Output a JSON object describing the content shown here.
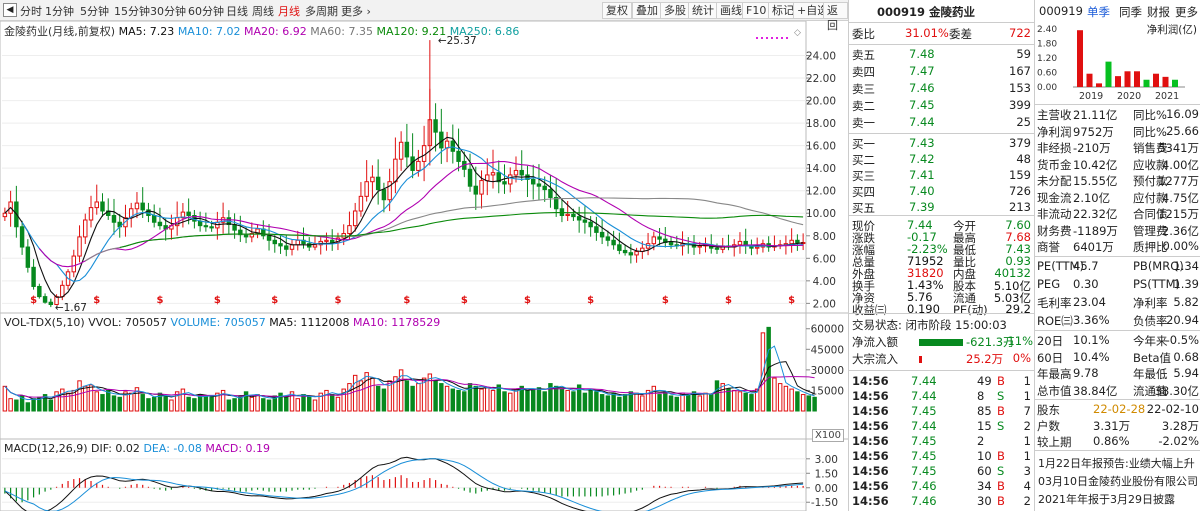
{
  "toolbar": {
    "periods": [
      "分时",
      "1分钟",
      "5分钟",
      "15分钟",
      "30分钟",
      "60分钟",
      "日线",
      "周线",
      "月线",
      "多周期",
      "更多"
    ],
    "active_period": "月线",
    "buttons": [
      "复权",
      "叠加",
      "多股",
      "统计",
      "画线",
      "F10",
      "标记",
      "+自选",
      "返回"
    ]
  },
  "main_legend": {
    "stock": "金陵药业(月线,前复权)",
    "ma5": "MA5: 7.23",
    "ma10": "MA10: 7.02",
    "ma20": "MA20: 6.92",
    "ma60": "MA60: 7.35",
    "ma120": "MA120: 9.21",
    "ma250": "MA250: 6.86"
  },
  "colors": {
    "up": "#e01010",
    "down": "#07891f",
    "ma5": "#111111",
    "ma10": "#1a8fd8",
    "ma20": "#b000b0",
    "ma60": "#888888",
    "ma120": "#0a8a0a",
    "ma250": "#11a0a0"
  },
  "price_axis": [
    "24.00",
    "22.00",
    "20.00",
    "18.00",
    "16.00",
    "14.00",
    "12.00",
    "10.00",
    "8.00",
    "6.00",
    "4.00",
    "2.00"
  ],
  "price_annotations": {
    "high": "25.37",
    "low": "1.67"
  },
  "volume_legend": {
    "title": "VOL-TDX(5,10)",
    "vvol": "VVOL: 705057",
    "volume": "VOLUME: 705057",
    "ma5": "MA5: 1112008",
    "ma10": "MA10: 1178529"
  },
  "volume_axis": [
    "60000",
    "45000",
    "30000",
    "15000"
  ],
  "volume_unit": "X100",
  "macd_legend": {
    "title": "MACD(12,26,9)",
    "dif": "DIF: 0.02",
    "dea": "DEA: -0.08",
    "macd": "MACD: 0.19"
  },
  "macd_axis": [
    "3.00",
    "1.50",
    "0.00",
    "-1.50"
  ],
  "chart_data": {
    "type": "candlestick",
    "period": "month",
    "price_ylim": [
      1.5,
      26
    ],
    "price_high": 25.37,
    "price_low": 1.67,
    "ma_last": {
      "MA5": 7.23,
      "MA10": 7.02,
      "MA20": 6.92,
      "MA60": 7.35,
      "MA120": 9.21,
      "MA250": 6.86
    },
    "volume_ylim": [
      0,
      62000
    ],
    "volume_last": 705057,
    "macd_ylim": [
      -2.2,
      3.6
    ],
    "macd_last": {
      "DIF": 0.02,
      "DEA": -0.08,
      "MACD": 0.19
    },
    "closes": [
      10.0,
      11.0,
      8.8,
      7.0,
      5.2,
      3.5,
      2.6,
      2.1,
      1.9,
      2.6,
      3.6,
      4.8,
      6.2,
      7.9,
      9.4,
      10.5,
      11.0,
      10.2,
      9.8,
      9.2,
      8.8,
      9.6,
      10.4,
      10.9,
      10.3,
      9.8,
      9.2,
      8.9,
      8.6,
      8.9,
      9.6,
      10.1,
      9.8,
      9.3,
      8.9,
      8.8,
      8.7,
      9.2,
      9.6,
      9.0,
      8.5,
      8.1,
      7.9,
      8.2,
      8.6,
      8.0,
      7.6,
      7.3,
      7.1,
      6.8,
      7.2,
      7.6,
      7.3,
      7.0,
      7.2,
      7.5,
      7.6,
      7.4,
      7.8,
      8.2,
      8.9,
      10.2,
      11.5,
      12.8,
      13.2,
      12.1,
      11.2,
      12.8,
      14.8,
      16.3,
      15.0,
      13.8,
      14.6,
      16.0,
      18.3,
      17.2,
      15.8,
      16.4,
      15.5,
      14.6,
      13.9,
      12.4,
      11.7,
      12.9,
      13.4,
      13.6,
      12.8,
      12.6,
      13.4,
      13.8,
      13.4,
      13.0,
      12.6,
      12.4,
      12.1,
      11.4,
      10.4,
      9.8,
      9.9,
      9.7,
      9.4,
      9.2,
      8.8,
      8.3,
      7.9,
      7.6,
      7.2,
      6.7,
      6.5,
      6.3,
      6.6,
      6.9,
      7.3,
      7.9,
      7.7,
      7.4,
      7.2,
      7.1,
      7.3,
      7.2,
      7.0,
      7.1,
      7.2,
      6.9,
      6.8,
      7.1,
      7.0,
      7.2,
      7.5,
      7.1,
      6.9,
      7.0,
      7.3,
      7.0,
      7.1,
      7.2,
      7.3,
      7.6,
      7.4,
      7.4
    ],
    "volumes": [
      18,
      9,
      8,
      11,
      6,
      9,
      10,
      12,
      8,
      14,
      16,
      13,
      15,
      22,
      18,
      19,
      14,
      12,
      15,
      11,
      10,
      14,
      13,
      17,
      12,
      9,
      10,
      13,
      11,
      8,
      14,
      16,
      10,
      9,
      12,
      11,
      10,
      13,
      15,
      8,
      9,
      11,
      14,
      10,
      12,
      9,
      8,
      11,
      13,
      10,
      14,
      9,
      12,
      11,
      8,
      13,
      15,
      12,
      10,
      16,
      20,
      26,
      22,
      28,
      24,
      18,
      16,
      22,
      25,
      30,
      22,
      18,
      20,
      24,
      27,
      22,
      20,
      18,
      16,
      15,
      14,
      20,
      18,
      16,
      17,
      15,
      19,
      14,
      13,
      16,
      18,
      15,
      16,
      17,
      14,
      20,
      18,
      16,
      15,
      14,
      19,
      13,
      16,
      14,
      12,
      11,
      13,
      10,
      12,
      14,
      13,
      11,
      15,
      18,
      12,
      14,
      11,
      10,
      13,
      12,
      14,
      11,
      13,
      12,
      22,
      20,
      16,
      15,
      14,
      13,
      12,
      16,
      57,
      61,
      24,
      20,
      18,
      16,
      14,
      12,
      11,
      10
    ],
    "macd_hist": [
      -0.6,
      -1.1,
      -1.4,
      -1.5,
      -1.3,
      -1.0,
      -0.7,
      -0.4,
      -0.2,
      0.1,
      0.4,
      0.7,
      0.9,
      1.0,
      0.9,
      0.7,
      0.5,
      0.3,
      0.1,
      0.0,
      -0.1,
      0.1,
      0.3,
      0.4,
      0.3,
      0.1,
      -0.1,
      -0.2,
      -0.3,
      -0.2,
      0.0,
      0.2,
      0.1,
      -0.1,
      -0.2,
      -0.3,
      -0.3,
      -0.2,
      -0.1,
      -0.2,
      -0.3,
      -0.4,
      -0.4,
      -0.3,
      -0.2,
      -0.3,
      -0.4,
      -0.4,
      -0.4,
      -0.4,
      -0.3,
      -0.2,
      -0.2,
      -0.2,
      -0.1,
      0.0,
      0.1,
      0.0,
      0.1,
      0.3,
      0.5,
      0.8,
      1.0,
      1.2,
      1.3,
      1.1,
      0.8,
      0.9,
      1.1,
      1.3,
      1.0,
      0.6,
      0.6,
      0.8,
      1.0,
      0.8,
      0.4,
      0.3,
      0.1,
      -0.1,
      -0.3,
      -0.5,
      -0.6,
      -0.4,
      -0.3,
      -0.2,
      -0.3,
      -0.3,
      -0.1,
      0.0,
      -0.1,
      -0.2,
      -0.3,
      -0.4,
      -0.5,
      -0.6,
      -0.8,
      -0.9,
      -0.9,
      -0.9,
      -0.9,
      -0.9,
      -0.9,
      -0.9,
      -0.9,
      -0.8,
      -0.8,
      -0.7,
      -0.6,
      -0.5,
      -0.3,
      -0.2,
      0.0,
      0.2,
      0.2,
      0.1,
      0.1,
      0.0,
      0.1,
      0.1,
      0.0,
      0.0,
      0.1,
      0.0,
      -0.1,
      0.0,
      0.0,
      0.1,
      0.2,
      0.1,
      0.0,
      0.0,
      0.1,
      0.1,
      0.1,
      0.2,
      0.2,
      0.2,
      0.2,
      0.19
    ]
  },
  "quote": {
    "code_name": "000919 金陵药业",
    "weibi_label": "委比",
    "weibi_value": "31.01%",
    "weicha_label": "委差",
    "weicha_value": "722",
    "asks": [
      {
        "label": "卖五",
        "price": "7.48",
        "vol": "59"
      },
      {
        "label": "卖四",
        "price": "7.47",
        "vol": "167"
      },
      {
        "label": "卖三",
        "price": "7.46",
        "vol": "153"
      },
      {
        "label": "卖二",
        "price": "7.45",
        "vol": "399"
      },
      {
        "label": "卖一",
        "price": "7.44",
        "vol": "25"
      }
    ],
    "bids": [
      {
        "label": "买一",
        "price": "7.43",
        "vol": "379"
      },
      {
        "label": "买二",
        "price": "7.42",
        "vol": "48"
      },
      {
        "label": "买三",
        "price": "7.41",
        "vol": "159"
      },
      {
        "label": "买四",
        "price": "7.40",
        "vol": "726"
      },
      {
        "label": "买五",
        "price": "7.39",
        "vol": "213"
      }
    ],
    "stats": [
      {
        "l1": "现价",
        "v1": "7.44",
        "c1": "green",
        "l2": "今开",
        "v2": "7.60",
        "c2": "green"
      },
      {
        "l1": "涨跌",
        "v1": "-0.17",
        "c1": "green",
        "l2": "最高",
        "v2": "7.68",
        "c2": "red"
      },
      {
        "l1": "涨幅",
        "v1": "-2.23%",
        "c1": "green",
        "l2": "最低",
        "v2": "7.43",
        "c2": "green"
      },
      {
        "l1": "总量",
        "v1": "71952",
        "c1": "blk",
        "l2": "量比",
        "v2": "0.93",
        "c2": "green"
      },
      {
        "l1": "外盘",
        "v1": "31820",
        "c1": "red",
        "l2": "内盘",
        "v2": "40132",
        "c2": "green"
      },
      {
        "l1": "换手",
        "v1": "1.43%",
        "c1": "blk",
        "l2": "股本",
        "v2": "5.10亿",
        "c2": "blk"
      },
      {
        "l1": "净资",
        "v1": "5.76",
        "c1": "blk",
        "l2": "流通",
        "v2": "5.03亿",
        "c2": "blk"
      },
      {
        "l1": "收益㈢",
        "v1": "0.190",
        "c1": "blk",
        "l2": "PE(动)",
        "v2": "29.2",
        "c2": "blk"
      }
    ],
    "trade_state": "交易状态: 闭市阶段 15:00:03",
    "net_inflow_label": "净流入额",
    "net_inflow_value": "-621.3万",
    "net_inflow_pct": "-11%",
    "block_inflow_label": "大宗流入",
    "block_inflow_value": "25.2万",
    "block_inflow_pct": "0%",
    "ticks": [
      {
        "t": "14:56",
        "p": "7.44",
        "v": "49",
        "d": "B",
        "n": "1"
      },
      {
        "t": "14:56",
        "p": "7.44",
        "v": "8",
        "d": "S",
        "n": "1"
      },
      {
        "t": "14:56",
        "p": "7.45",
        "v": "85",
        "d": "B",
        "n": "7"
      },
      {
        "t": "14:56",
        "p": "7.44",
        "v": "15",
        "d": "S",
        "n": "2"
      },
      {
        "t": "14:56",
        "p": "7.45",
        "v": "2",
        "d": "",
        "n": "1"
      },
      {
        "t": "14:56",
        "p": "7.45",
        "v": "10",
        "d": "B",
        "n": "1"
      },
      {
        "t": "14:56",
        "p": "7.45",
        "v": "60",
        "d": "S",
        "n": "3"
      },
      {
        "t": "14:56",
        "p": "7.46",
        "v": "34",
        "d": "B",
        "n": "4"
      },
      {
        "t": "14:56",
        "p": "7.46",
        "v": "30",
        "d": "B",
        "n": "2"
      }
    ]
  },
  "finance": {
    "code": "000919",
    "tabs": [
      "单季",
      "同季",
      "财报",
      "更多"
    ],
    "chart_title": "净利润(亿)",
    "chart_axis": [
      "2.40",
      "1.80",
      "1.20",
      "0.60",
      "0.00"
    ],
    "chart_years": [
      "2019",
      "2020",
      "2021"
    ],
    "profit_bars": [
      {
        "v": 2.35,
        "c": "#e01010"
      },
      {
        "v": 0.55,
        "c": "#e01010"
      },
      {
        "v": 0.15,
        "c": "#e01010"
      },
      {
        "v": 1.05,
        "c": "#07c020"
      },
      {
        "v": 0.45,
        "c": "#e01010"
      },
      {
        "v": 0.65,
        "c": "#e01010"
      },
      {
        "v": 0.65,
        "c": "#e01010"
      },
      {
        "v": 0.3,
        "c": "#07c020"
      },
      {
        "v": 0.55,
        "c": "#e01010"
      },
      {
        "v": 0.42,
        "c": "#e01010"
      },
      {
        "v": 0.3,
        "c": "#07c020"
      }
    ],
    "rows": [
      {
        "l1": "主营收",
        "v1": "21.11亿",
        "l2": "同比%",
        "v2": "16.09"
      },
      {
        "l1": "净利润",
        "v1": "9752万",
        "l2": "同比%",
        "v2": "25.66"
      },
      {
        "l1": "非经损",
        "v1": "-210万",
        "l2": "销售费",
        "v2": "5341万"
      },
      {
        "l1": "货币金",
        "v1": "10.42亿",
        "l2": "应收款",
        "v2": "4.00亿"
      },
      {
        "l1": "未分配",
        "v1": "15.55亿",
        "l2": "预付款",
        "v2": "1277万"
      },
      {
        "l1": "现金流",
        "v1": "2.10亿",
        "l2": "应付款",
        "v2": "4.75亿"
      },
      {
        "l1": "非流动",
        "v1": "22.32亿",
        "l2": "合同债",
        "v2": "1215万"
      },
      {
        "l1": "财务费",
        "v1": "-1189万",
        "l2": "管理费",
        "v2": "2.36亿"
      },
      {
        "l1": "商誉",
        "v1": "6401万",
        "l2": "质押比",
        "v2": "0.00%"
      }
    ],
    "ratios": [
      {
        "l1": "PE(TTM)",
        "v1": "45.7",
        "l2": "PB(MRQ)",
        "v2": "1.34"
      },
      {
        "l1": "PEG",
        "v1": "0.30",
        "l2": "PS(TTM)",
        "v2": "1.39"
      },
      {
        "l1": "毛利率",
        "v1": "23.04",
        "l2": "净利率",
        "v2": "5.82"
      },
      {
        "l1": "ROE㈢",
        "v1": "3.36%",
        "l2": "负债率",
        "v2": "20.94"
      }
    ],
    "perf": [
      {
        "l1": "20日",
        "v1": "10.1%",
        "l2": "今年来",
        "v2": "-0.5%"
      },
      {
        "l1": "60日",
        "v1": "10.4%",
        "l2": "Beta值",
        "v2": "0.68"
      },
      {
        "l1": "年最高",
        "v1": "9.78",
        "l2": "年最低",
        "v2": "5.94"
      },
      {
        "l1": "总市值",
        "v1": "38.84亿",
        "l2": "流通值",
        "v2": "38.30亿"
      }
    ],
    "holders": [
      {
        "l1": "股东",
        "v1": "22-02-28",
        "v2": "22-02-10"
      },
      {
        "l1": "户数",
        "v1": "3.31万",
        "v2": "3.28万"
      },
      {
        "l1": "较上期",
        "v1": "0.86%",
        "v2": "-2.02%"
      }
    ],
    "news": [
      "1月22日年报预告:业绩大幅上升",
      "03月10日金陵药业股份有限公司",
      "2021年年报于3月29日披露"
    ]
  }
}
